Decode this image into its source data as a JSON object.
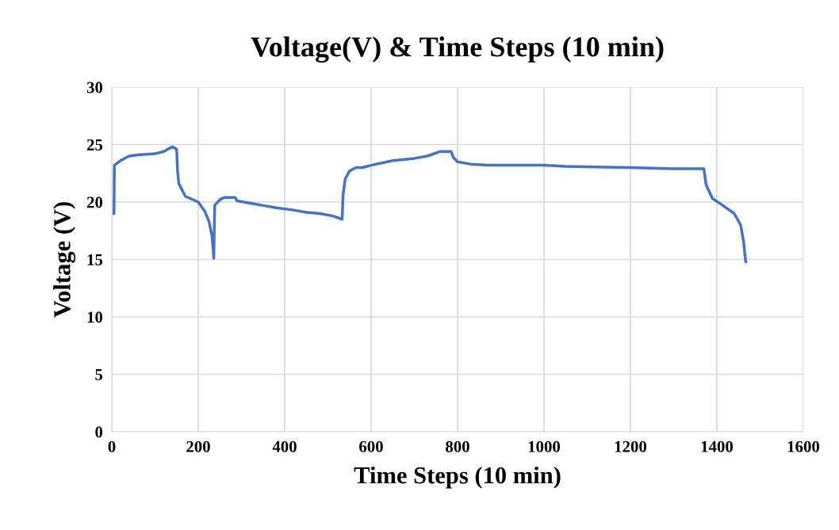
{
  "chart_data": {
    "type": "line",
    "title": "Voltage(V) & Time Steps (10 min)",
    "xlabel": "Time Steps (10 min)",
    "ylabel": "Voltage (V)",
    "x": [
      5,
      6,
      20,
      40,
      60,
      100,
      120,
      140,
      150,
      152,
      155,
      170,
      200,
      215,
      225,
      232,
      236,
      238,
      250,
      260,
      285,
      290,
      320,
      350,
      380,
      420,
      450,
      480,
      510,
      533,
      535,
      540,
      550,
      565,
      580,
      600,
      650,
      700,
      730,
      760,
      785,
      790,
      800,
      830,
      870,
      1000,
      1050,
      1200,
      1300,
      1370,
      1375,
      1390,
      1410,
      1440,
      1455,
      1462,
      1466,
      1467
    ],
    "series": [
      {
        "color": "#4472c4",
        "values": [
          19.0,
          23.2,
          23.6,
          24.0,
          24.1,
          24.2,
          24.4,
          24.8,
          24.6,
          22.8,
          21.6,
          20.5,
          20.0,
          19.2,
          18.3,
          17.0,
          15.1,
          19.7,
          20.2,
          20.4,
          20.4,
          20.1,
          19.9,
          19.7,
          19.5,
          19.3,
          19.1,
          19.0,
          18.8,
          18.5,
          20.6,
          22.0,
          22.7,
          23.0,
          23.0,
          23.2,
          23.6,
          23.8,
          24.0,
          24.4,
          24.4,
          23.9,
          23.5,
          23.3,
          23.2,
          23.2,
          23.1,
          23.0,
          22.9,
          22.9,
          21.5,
          20.3,
          19.8,
          19.0,
          18.0,
          16.5,
          15.0,
          14.8
        ]
      }
    ],
    "xlim": [
      0,
      1600
    ],
    "xticks": [
      0,
      200,
      400,
      600,
      800,
      1000,
      1200,
      1400,
      1600
    ],
    "ylim": [
      0,
      30
    ],
    "yticks": [
      0,
      5,
      10,
      15,
      20,
      25,
      30
    ],
    "grid": true,
    "legend": false,
    "marker": "none",
    "line_style": "solid"
  }
}
